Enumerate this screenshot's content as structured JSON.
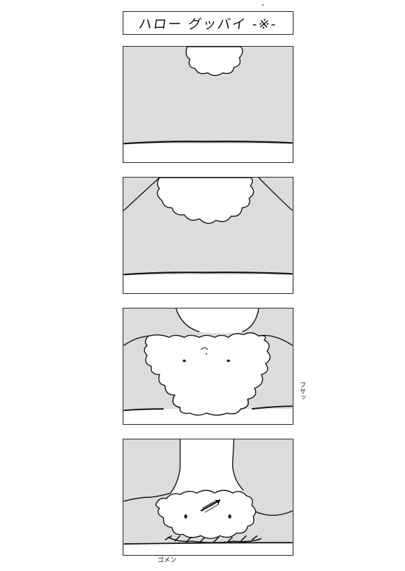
{
  "title": "ハロー グッバイ -※-",
  "sound_effects": {
    "panel3": "フサッ",
    "panel4": "ゴメン"
  },
  "colors": {
    "panel_fill": "#dcdcdc",
    "ink": "#111111",
    "paper": "#ffffff"
  }
}
